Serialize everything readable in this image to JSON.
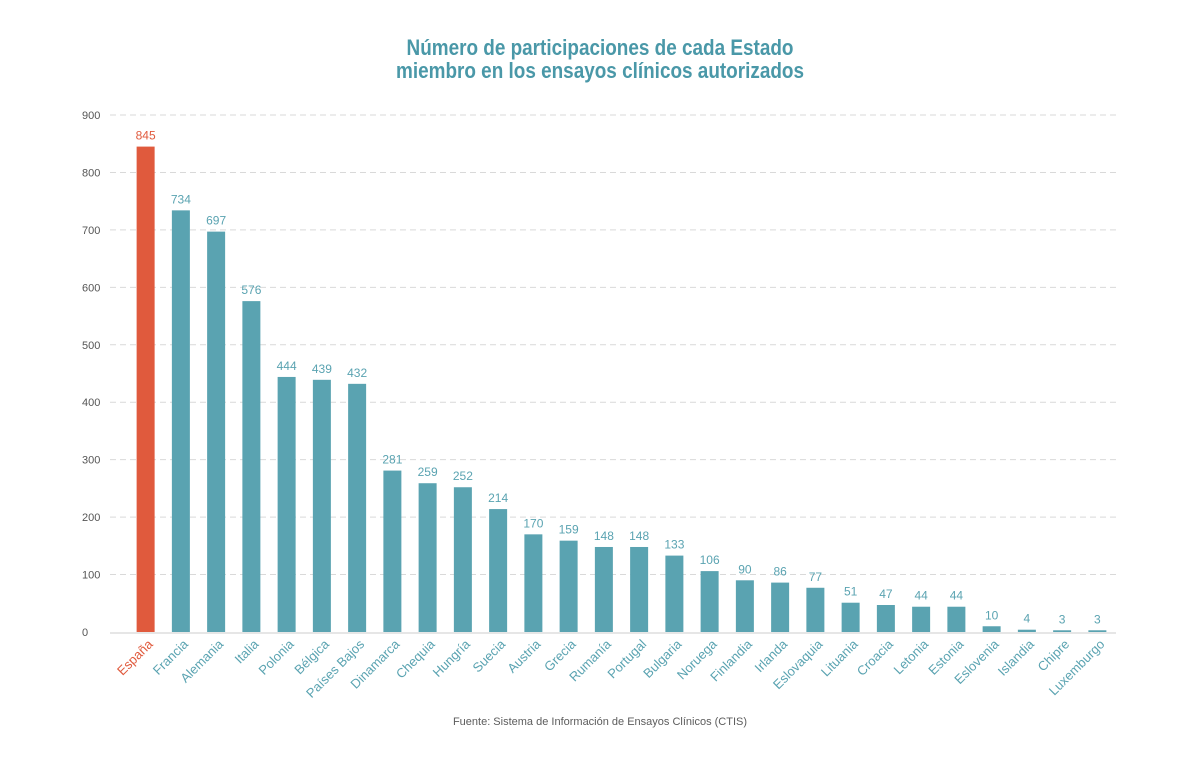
{
  "title_lines": [
    "Número de participaciones de cada Estado",
    "miembro en los ensayos clínicos autorizados"
  ],
  "source": "Fuente: Sistema de Información de Ensayos Clínicos (CTIS)",
  "colors": {
    "bar": "#5aa3b1",
    "highlight": "#e05a3d",
    "title": "#4a98a8",
    "axis_text": "#555555",
    "grid": "#d9d9d9"
  },
  "chart_data": {
    "type": "bar",
    "title": "Número de participaciones de cada Estado miembro en los ensayos clínicos autorizados",
    "categories": [
      "España",
      "Francia",
      "Alemania",
      "Italia",
      "Polonia",
      "Bélgica",
      "Países Bajos",
      "Dinamarca",
      "Chequia",
      "Hungría",
      "Suecia",
      "Austria",
      "Grecia",
      "Rumanía",
      "Portugal",
      "Bulgaria",
      "Noruega",
      "Finlandia",
      "Irlanda",
      "Eslovaquia",
      "Lituania",
      "Croacia",
      "Letonia",
      "Estonia",
      "Eslovenia",
      "Islandia",
      "Chipre",
      "Luxemburgo"
    ],
    "values": [
      845,
      734,
      697,
      576,
      444,
      439,
      432,
      281,
      259,
      252,
      214,
      170,
      159,
      148,
      148,
      133,
      106,
      90,
      86,
      77,
      51,
      47,
      44,
      44,
      10,
      4,
      3,
      3
    ],
    "highlight_category": "España",
    "yticks": [
      0,
      100,
      200,
      300,
      400,
      500,
      600,
      700,
      800,
      900
    ],
    "ylim": [
      0,
      900
    ],
    "grid": true,
    "xlabel": "",
    "ylabel": ""
  }
}
